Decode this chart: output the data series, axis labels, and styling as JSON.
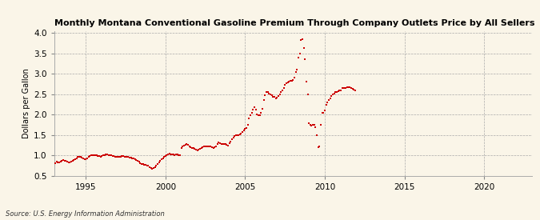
{
  "title": "Monthly Montana Conventional Gasoline Premium Through Company Outlets Price by All Sellers",
  "ylabel": "Dollars per Gallon",
  "source": "Source: U.S. Energy Information Administration",
  "xlim": [
    1993.0,
    2023.0
  ],
  "ylim": [
    0.5,
    4.05
  ],
  "yticks": [
    0.5,
    1.0,
    1.5,
    2.0,
    2.5,
    3.0,
    3.5,
    4.0
  ],
  "xticks": [
    1995,
    2000,
    2005,
    2010,
    2015,
    2020
  ],
  "bg_color": "#faf5e8",
  "dot_color": "#cc0000",
  "data": [
    [
      1993.08,
      0.82
    ],
    [
      1993.17,
      0.85
    ],
    [
      1993.25,
      0.84
    ],
    [
      1993.33,
      0.83
    ],
    [
      1993.42,
      0.85
    ],
    [
      1993.5,
      0.88
    ],
    [
      1993.58,
      0.9
    ],
    [
      1993.67,
      0.88
    ],
    [
      1993.75,
      0.87
    ],
    [
      1993.83,
      0.86
    ],
    [
      1993.92,
      0.84
    ],
    [
      1994.0,
      0.83
    ],
    [
      1994.08,
      0.85
    ],
    [
      1994.17,
      0.88
    ],
    [
      1994.25,
      0.9
    ],
    [
      1994.33,
      0.92
    ],
    [
      1994.42,
      0.94
    ],
    [
      1994.5,
      0.96
    ],
    [
      1994.58,
      0.97
    ],
    [
      1994.67,
      0.96
    ],
    [
      1994.75,
      0.95
    ],
    [
      1994.83,
      0.93
    ],
    [
      1994.92,
      0.91
    ],
    [
      1995.0,
      0.92
    ],
    [
      1995.08,
      0.94
    ],
    [
      1995.17,
      0.96
    ],
    [
      1995.25,
      0.98
    ],
    [
      1995.33,
      1.0
    ],
    [
      1995.42,
      1.01
    ],
    [
      1995.5,
      1.01
    ],
    [
      1995.58,
      1.0
    ],
    [
      1995.67,
      1.0
    ],
    [
      1995.75,
      0.99
    ],
    [
      1995.83,
      0.98
    ],
    [
      1995.92,
      0.97
    ],
    [
      1996.0,
      0.98
    ],
    [
      1996.08,
      1.0
    ],
    [
      1996.17,
      1.01
    ],
    [
      1996.25,
      1.02
    ],
    [
      1996.33,
      1.02
    ],
    [
      1996.42,
      1.01
    ],
    [
      1996.5,
      1.01
    ],
    [
      1996.58,
      1.0
    ],
    [
      1996.67,
      0.99
    ],
    [
      1996.75,
      0.98
    ],
    [
      1996.83,
      0.97
    ],
    [
      1996.92,
      0.97
    ],
    [
      1997.0,
      0.97
    ],
    [
      1997.08,
      0.97
    ],
    [
      1997.17,
      0.97
    ],
    [
      1997.25,
      0.98
    ],
    [
      1997.33,
      0.98
    ],
    [
      1997.42,
      0.97
    ],
    [
      1997.5,
      0.97
    ],
    [
      1997.58,
      0.96
    ],
    [
      1997.67,
      0.96
    ],
    [
      1997.75,
      0.95
    ],
    [
      1997.83,
      0.95
    ],
    [
      1997.92,
      0.94
    ],
    [
      1998.0,
      0.93
    ],
    [
      1998.08,
      0.91
    ],
    [
      1998.17,
      0.89
    ],
    [
      1998.25,
      0.87
    ],
    [
      1998.33,
      0.85
    ],
    [
      1998.42,
      0.82
    ],
    [
      1998.5,
      0.8
    ],
    [
      1998.58,
      0.79
    ],
    [
      1998.67,
      0.78
    ],
    [
      1998.75,
      0.77
    ],
    [
      1998.83,
      0.76
    ],
    [
      1998.92,
      0.75
    ],
    [
      1999.0,
      0.72
    ],
    [
      1999.08,
      0.7
    ],
    [
      1999.17,
      0.68
    ],
    [
      1999.25,
      0.69
    ],
    [
      1999.33,
      0.72
    ],
    [
      1999.42,
      0.76
    ],
    [
      1999.5,
      0.8
    ],
    [
      1999.58,
      0.84
    ],
    [
      1999.67,
      0.88
    ],
    [
      1999.75,
      0.91
    ],
    [
      1999.83,
      0.93
    ],
    [
      1999.92,
      0.96
    ],
    [
      2000.0,
      0.98
    ],
    [
      2000.08,
      1.0
    ],
    [
      2000.17,
      1.02
    ],
    [
      2000.25,
      1.04
    ],
    [
      2000.33,
      1.03
    ],
    [
      2000.42,
      1.02
    ],
    [
      2000.5,
      1.02
    ],
    [
      2000.58,
      1.01
    ],
    [
      2000.67,
      1.02
    ],
    [
      2000.75,
      1.02
    ],
    [
      2000.83,
      1.01
    ],
    [
      2000.92,
      1.0
    ],
    [
      2001.0,
      1.18
    ],
    [
      2001.08,
      1.22
    ],
    [
      2001.17,
      1.25
    ],
    [
      2001.25,
      1.27
    ],
    [
      2001.33,
      1.28
    ],
    [
      2001.42,
      1.26
    ],
    [
      2001.5,
      1.23
    ],
    [
      2001.58,
      1.2
    ],
    [
      2001.67,
      1.19
    ],
    [
      2001.75,
      1.18
    ],
    [
      2001.83,
      1.16
    ],
    [
      2001.92,
      1.14
    ],
    [
      2002.0,
      1.12
    ],
    [
      2002.08,
      1.14
    ],
    [
      2002.17,
      1.16
    ],
    [
      2002.25,
      1.18
    ],
    [
      2002.33,
      1.2
    ],
    [
      2002.42,
      1.22
    ],
    [
      2002.5,
      1.23
    ],
    [
      2002.58,
      1.22
    ],
    [
      2002.67,
      1.22
    ],
    [
      2002.75,
      1.23
    ],
    [
      2002.83,
      1.22
    ],
    [
      2002.92,
      1.2
    ],
    [
      2003.0,
      1.18
    ],
    [
      2003.08,
      1.2
    ],
    [
      2003.17,
      1.22
    ],
    [
      2003.25,
      1.28
    ],
    [
      2003.33,
      1.32
    ],
    [
      2003.42,
      1.3
    ],
    [
      2003.5,
      1.28
    ],
    [
      2003.58,
      1.28
    ],
    [
      2003.67,
      1.28
    ],
    [
      2003.75,
      1.28
    ],
    [
      2003.83,
      1.27
    ],
    [
      2003.92,
      1.24
    ],
    [
      2004.0,
      1.3
    ],
    [
      2004.08,
      1.35
    ],
    [
      2004.17,
      1.4
    ],
    [
      2004.25,
      1.44
    ],
    [
      2004.33,
      1.47
    ],
    [
      2004.42,
      1.5
    ],
    [
      2004.5,
      1.5
    ],
    [
      2004.58,
      1.5
    ],
    [
      2004.67,
      1.51
    ],
    [
      2004.75,
      1.54
    ],
    [
      2004.83,
      1.58
    ],
    [
      2004.92,
      1.62
    ],
    [
      2005.0,
      1.65
    ],
    [
      2005.08,
      1.68
    ],
    [
      2005.17,
      1.75
    ],
    [
      2005.25,
      1.9
    ],
    [
      2005.33,
      1.98
    ],
    [
      2005.42,
      2.05
    ],
    [
      2005.5,
      2.12
    ],
    [
      2005.58,
      2.18
    ],
    [
      2005.67,
      2.12
    ],
    [
      2005.75,
      2.0
    ],
    [
      2005.83,
      1.98
    ],
    [
      2005.92,
      1.98
    ],
    [
      2006.0,
      2.05
    ],
    [
      2006.08,
      2.15
    ],
    [
      2006.17,
      2.35
    ],
    [
      2006.25,
      2.48
    ],
    [
      2006.33,
      2.55
    ],
    [
      2006.42,
      2.55
    ],
    [
      2006.5,
      2.52
    ],
    [
      2006.58,
      2.5
    ],
    [
      2006.67,
      2.47
    ],
    [
      2006.75,
      2.44
    ],
    [
      2006.83,
      2.43
    ],
    [
      2006.92,
      2.4
    ],
    [
      2007.0,
      2.42
    ],
    [
      2007.08,
      2.46
    ],
    [
      2007.17,
      2.5
    ],
    [
      2007.25,
      2.55
    ],
    [
      2007.33,
      2.6
    ],
    [
      2007.42,
      2.65
    ],
    [
      2007.5,
      2.72
    ],
    [
      2007.58,
      2.76
    ],
    [
      2007.67,
      2.78
    ],
    [
      2007.75,
      2.8
    ],
    [
      2007.83,
      2.82
    ],
    [
      2007.92,
      2.82
    ],
    [
      2008.0,
      2.85
    ],
    [
      2008.08,
      2.9
    ],
    [
      2008.17,
      3.05
    ],
    [
      2008.25,
      3.1
    ],
    [
      2008.33,
      3.4
    ],
    [
      2008.42,
      3.5
    ],
    [
      2008.5,
      3.82
    ],
    [
      2008.58,
      3.85
    ],
    [
      2008.67,
      3.62
    ],
    [
      2008.75,
      3.35
    ],
    [
      2008.83,
      2.8
    ],
    [
      2008.92,
      2.5
    ],
    [
      2009.0,
      1.8
    ],
    [
      2009.08,
      1.75
    ],
    [
      2009.17,
      1.73
    ],
    [
      2009.25,
      1.76
    ],
    [
      2009.33,
      1.75
    ],
    [
      2009.42,
      1.7
    ],
    [
      2009.5,
      1.5
    ],
    [
      2009.58,
      1.2
    ],
    [
      2009.67,
      1.22
    ],
    [
      2009.75,
      1.75
    ],
    [
      2009.83,
      2.04
    ],
    [
      2009.92,
      2.05
    ],
    [
      2010.0,
      2.1
    ],
    [
      2010.08,
      2.25
    ],
    [
      2010.17,
      2.3
    ],
    [
      2010.25,
      2.35
    ],
    [
      2010.33,
      2.4
    ],
    [
      2010.42,
      2.45
    ],
    [
      2010.5,
      2.5
    ],
    [
      2010.58,
      2.52
    ],
    [
      2010.67,
      2.55
    ],
    [
      2010.75,
      2.55
    ],
    [
      2010.83,
      2.58
    ],
    [
      2010.92,
      2.6
    ],
    [
      2011.0,
      2.6
    ],
    [
      2011.08,
      2.65
    ],
    [
      2011.17,
      2.65
    ],
    [
      2011.25,
      2.65
    ],
    [
      2011.33,
      2.65
    ],
    [
      2011.42,
      2.68
    ],
    [
      2011.5,
      2.68
    ],
    [
      2011.58,
      2.67
    ],
    [
      2011.67,
      2.65
    ],
    [
      2011.75,
      2.63
    ],
    [
      2011.83,
      2.62
    ],
    [
      2011.92,
      2.6
    ]
  ]
}
